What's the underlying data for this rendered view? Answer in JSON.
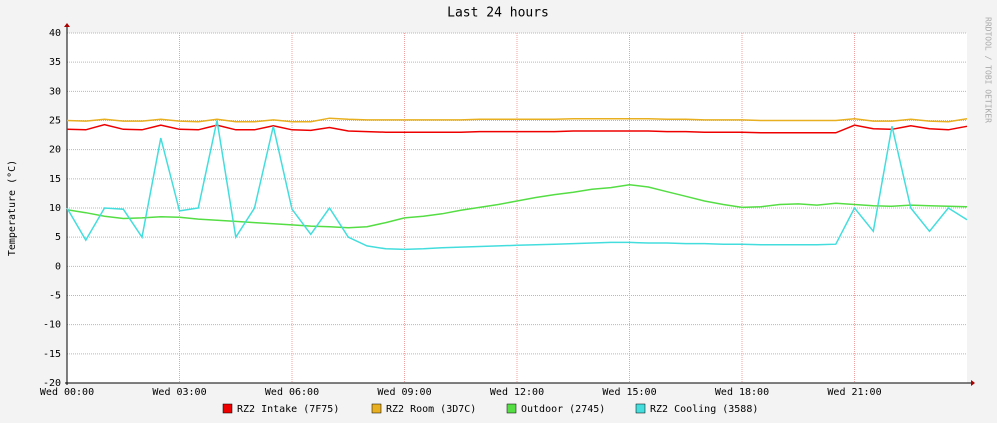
{
  "chart_data": {
    "type": "line",
    "title": "Last 24 hours",
    "y_label": "Temperature (°C)",
    "side_text": "RRDTOOL / TOBI OETIKER",
    "x": [
      0,
      0.5,
      1,
      1.5,
      2,
      2.5,
      3,
      3.5,
      4,
      4.5,
      5,
      5.5,
      6,
      6.5,
      7,
      7.5,
      8,
      8.5,
      9,
      9.5,
      10,
      10.5,
      11,
      11.5,
      12,
      12.5,
      13,
      13.5,
      14,
      14.5,
      15,
      15.5,
      16,
      16.5,
      17,
      17.5,
      18,
      18.5,
      19,
      19.5,
      20,
      20.5,
      21,
      21.5,
      22,
      22.5,
      23,
      23.5,
      24
    ],
    "xlim": [
      0,
      24
    ],
    "xticks": [
      {
        "value": 0,
        "label": "Wed 00:00"
      },
      {
        "value": 3,
        "label": "Wed 03:00"
      },
      {
        "value": 6,
        "label": "Wed 06:00"
      },
      {
        "value": 9,
        "label": "Wed 09:00"
      },
      {
        "value": 12,
        "label": "Wed 12:00"
      },
      {
        "value": 15,
        "label": "Wed 15:00"
      },
      {
        "value": 18,
        "label": "Wed 18:00"
      },
      {
        "value": 21,
        "label": "Wed 21:00"
      }
    ],
    "ylim": [
      -20,
      40
    ],
    "yticks": [
      -20,
      -15,
      -10,
      -5,
      0,
      5,
      10,
      15,
      20,
      25,
      30,
      35,
      40
    ],
    "grid": true,
    "series": [
      {
        "name": "RZ2 Intake (7F75)",
        "color": "#ee0000",
        "values": [
          23.5,
          23.4,
          24.3,
          23.5,
          23.4,
          24.2,
          23.5,
          23.4,
          24.2,
          23.4,
          23.4,
          24.1,
          23.4,
          23.3,
          23.8,
          23.2,
          23.1,
          23.0,
          23.0,
          23.0,
          23.0,
          23.0,
          23.1,
          23.1,
          23.1,
          23.1,
          23.1,
          23.2,
          23.2,
          23.2,
          23.2,
          23.2,
          23.1,
          23.1,
          23.0,
          23.0,
          23.0,
          22.9,
          22.9,
          22.9,
          22.9,
          22.9,
          24.2,
          23.6,
          23.5,
          24.1,
          23.6,
          23.4,
          24.0
        ]
      },
      {
        "name": "RZ2 Room (3D7C)",
        "color": "#e8b020",
        "values": [
          25.0,
          24.9,
          25.2,
          24.9,
          24.9,
          25.2,
          24.9,
          24.8,
          25.2,
          24.8,
          24.8,
          25.1,
          24.8,
          24.8,
          25.4,
          25.2,
          25.1,
          25.1,
          25.1,
          25.1,
          25.1,
          25.1,
          25.2,
          25.2,
          25.2,
          25.2,
          25.2,
          25.3,
          25.3,
          25.3,
          25.3,
          25.3,
          25.2,
          25.2,
          25.1,
          25.1,
          25.1,
          25.0,
          25.0,
          25.0,
          25.0,
          25.0,
          25.3,
          24.9,
          24.9,
          25.2,
          24.9,
          24.8,
          25.3
        ]
      },
      {
        "name": "Outdoor (2745)",
        "color": "#55dd44",
        "values": [
          9.7,
          9.2,
          8.6,
          8.2,
          8.3,
          8.5,
          8.4,
          8.1,
          7.9,
          7.7,
          7.5,
          7.3,
          7.1,
          6.9,
          6.8,
          6.6,
          6.8,
          7.5,
          8.3,
          8.6,
          9.0,
          9.6,
          10.1,
          10.6,
          11.2,
          11.8,
          12.3,
          12.7,
          13.2,
          13.5,
          14.0,
          13.6,
          12.8,
          12.0,
          11.2,
          10.6,
          10.1,
          10.2,
          10.6,
          10.7,
          10.5,
          10.8,
          10.6,
          10.4,
          10.3,
          10.5,
          10.4,
          10.3,
          10.2
        ]
      },
      {
        "name": "RZ2 Cooling (3588)",
        "color": "#44dddd",
        "values": [
          10,
          4.5,
          10,
          9.8,
          5,
          22,
          9.5,
          10,
          25,
          5,
          10,
          24,
          9.8,
          5.5,
          10,
          5,
          3.5,
          3,
          2.9,
          3,
          3.2,
          3.3,
          3.4,
          3.5,
          3.6,
          3.7,
          3.8,
          3.9,
          4,
          4.1,
          4.1,
          4,
          4,
          3.9,
          3.9,
          3.8,
          3.8,
          3.7,
          3.7,
          3.7,
          3.7,
          3.8,
          10,
          6,
          24,
          10,
          6,
          10,
          8
        ]
      }
    ]
  }
}
